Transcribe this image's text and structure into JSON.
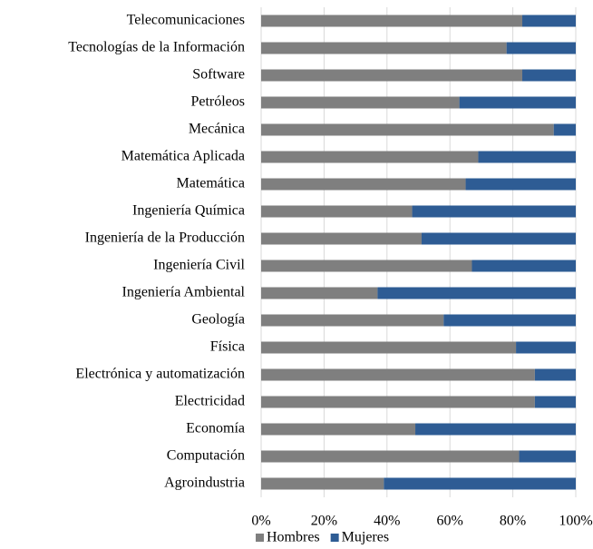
{
  "chart_data": {
    "type": "stacked-bar",
    "orientation": "horizontal",
    "categories": [
      "Telecomunicaciones",
      "Tecnologías de la Información",
      "Software",
      "Petróleos",
      "Mecánica",
      "Matemática Aplicada",
      "Matemática",
      "Ingeniería Química",
      "Ingeniería de la Producción",
      "Ingeniería Civil",
      "Ingeniería Ambiental",
      "Geología",
      "Física",
      "Electrónica y automatización",
      "Electricidad",
      "Economía",
      "Computación",
      "Agroindustria"
    ],
    "series": [
      {
        "name": "Hombres",
        "color": "#7f7f7f",
        "values": [
          83,
          78,
          83,
          63,
          93,
          69,
          65,
          48,
          51,
          67,
          37,
          58,
          81,
          87,
          87,
          49,
          82,
          39
        ]
      },
      {
        "name": "Mujeres",
        "color": "#2e5c94",
        "values": [
          17,
          22,
          17,
          37,
          7,
          31,
          35,
          52,
          49,
          33,
          63,
          42,
          19,
          13,
          13,
          51,
          18,
          61
        ]
      }
    ],
    "xlim": [
      0,
      100
    ],
    "xticks": [
      {
        "value": 0,
        "label": "0%"
      },
      {
        "value": 20,
        "label": "20%"
      },
      {
        "value": 40,
        "label": "40%"
      },
      {
        "value": 60,
        "label": "60%"
      },
      {
        "value": 80,
        "label": "80%"
      },
      {
        "value": 100,
        "label": "100%"
      }
    ],
    "grid": true,
    "legend": "bottom"
  }
}
